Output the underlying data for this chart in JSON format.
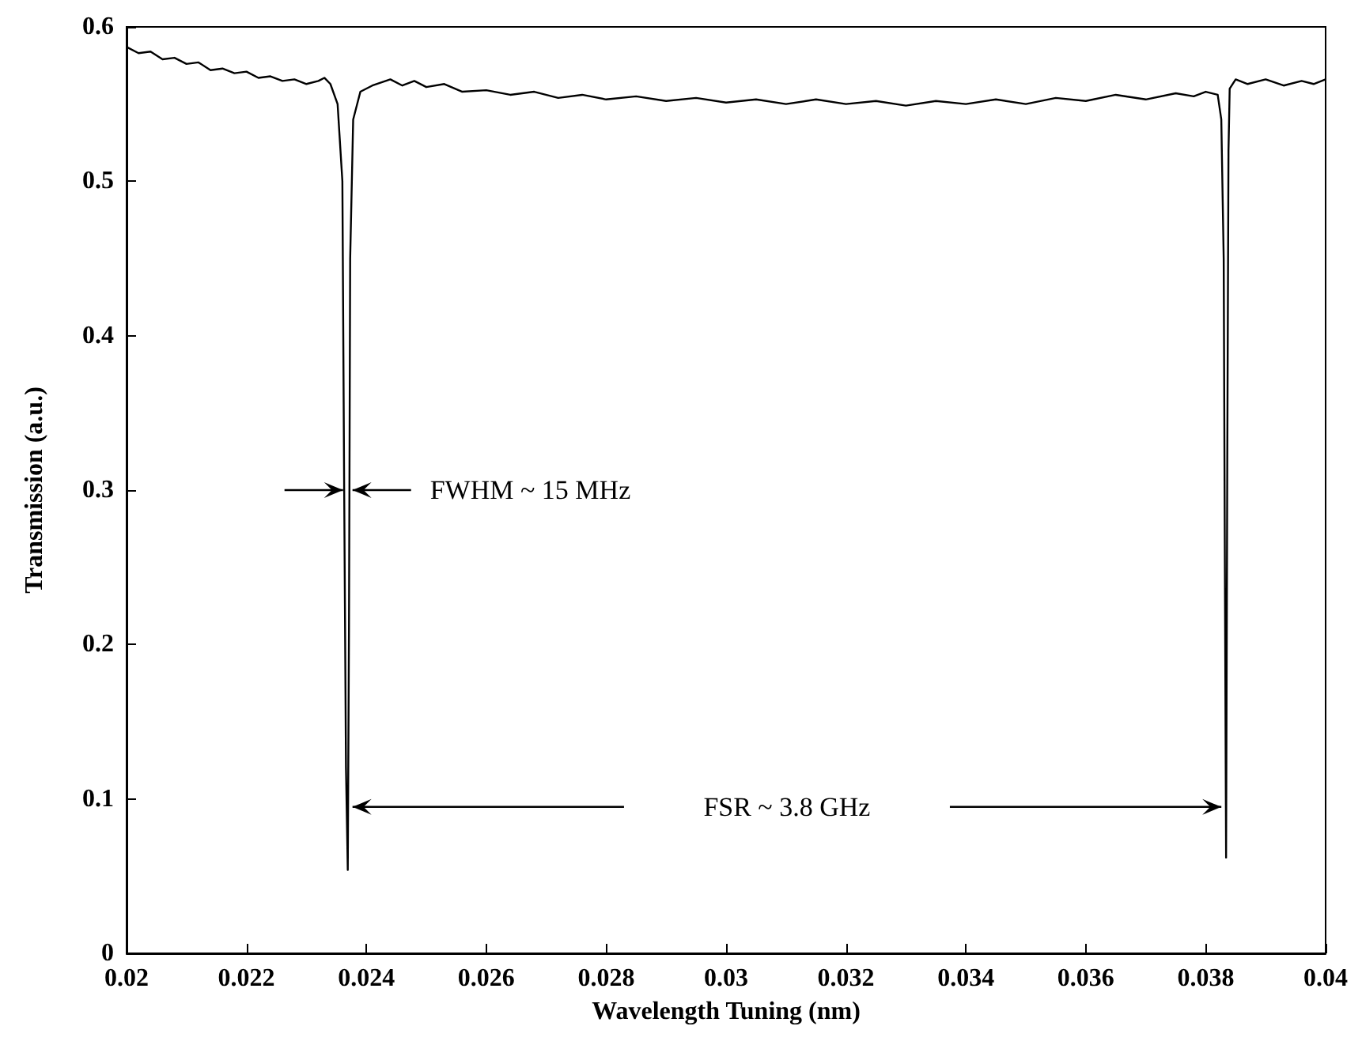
{
  "chart_data": {
    "type": "line",
    "xlabel": "Wavelength Tuning (nm)",
    "ylabel": "Transmission (a.u.)",
    "xlim": [
      0.02,
      0.04
    ],
    "xticks": [
      0.02,
      0.022,
      0.024,
      0.026,
      0.028,
      0.03,
      0.032,
      0.034,
      0.036,
      0.038,
      0.04
    ],
    "ylim": [
      0,
      0.6
    ],
    "yticks": [
      0,
      0.1,
      0.2,
      0.3,
      0.4,
      0.5,
      0.6
    ],
    "grid": false,
    "line_style": "solid",
    "annotations": [
      "FWHM  ~ 15 MHz",
      "FSR  ~ 3.8 GHz"
    ],
    "series": [
      {
        "color": "#000000",
        "x": [
          0.02,
          0.0202,
          0.0204,
          0.0206,
          0.0208,
          0.021,
          0.0212,
          0.0214,
          0.0216,
          0.0218,
          0.022,
          0.0222,
          0.0224,
          0.0226,
          0.0228,
          0.023,
          0.0232,
          0.0233,
          0.0234,
          0.02352,
          0.0236,
          0.02363,
          0.02366,
          0.02369,
          0.02371,
          0.02373,
          0.02378,
          0.0239,
          0.0241,
          0.0244,
          0.0246,
          0.0248,
          0.025,
          0.0253,
          0.0256,
          0.026,
          0.0264,
          0.0268,
          0.0272,
          0.0276,
          0.028,
          0.0285,
          0.029,
          0.0295,
          0.03,
          0.0305,
          0.031,
          0.0315,
          0.032,
          0.0325,
          0.033,
          0.0335,
          0.034,
          0.0345,
          0.035,
          0.0355,
          0.036,
          0.0365,
          0.037,
          0.0375,
          0.0378,
          0.038,
          0.0382,
          0.03826,
          0.0383,
          0.03832,
          0.03834,
          0.03836,
          0.03838,
          0.0384,
          0.0385,
          0.0387,
          0.039,
          0.0393,
          0.0396,
          0.0398,
          0.04
        ],
        "values": [
          0.587,
          0.583,
          0.584,
          0.579,
          0.58,
          0.576,
          0.577,
          0.572,
          0.573,
          0.57,
          0.571,
          0.567,
          0.568,
          0.565,
          0.566,
          0.563,
          0.565,
          0.567,
          0.563,
          0.55,
          0.5,
          0.3,
          0.12,
          0.054,
          0.21,
          0.45,
          0.54,
          0.558,
          0.562,
          0.566,
          0.562,
          0.565,
          0.561,
          0.563,
          0.558,
          0.559,
          0.556,
          0.558,
          0.554,
          0.556,
          0.553,
          0.555,
          0.552,
          0.554,
          0.551,
          0.553,
          0.55,
          0.553,
          0.55,
          0.552,
          0.549,
          0.552,
          0.55,
          0.553,
          0.55,
          0.554,
          0.552,
          0.556,
          0.553,
          0.557,
          0.555,
          0.558,
          0.556,
          0.54,
          0.45,
          0.25,
          0.062,
          0.32,
          0.52,
          0.56,
          0.566,
          0.563,
          0.566,
          0.562,
          0.565,
          0.563,
          0.566
        ]
      }
    ]
  }
}
